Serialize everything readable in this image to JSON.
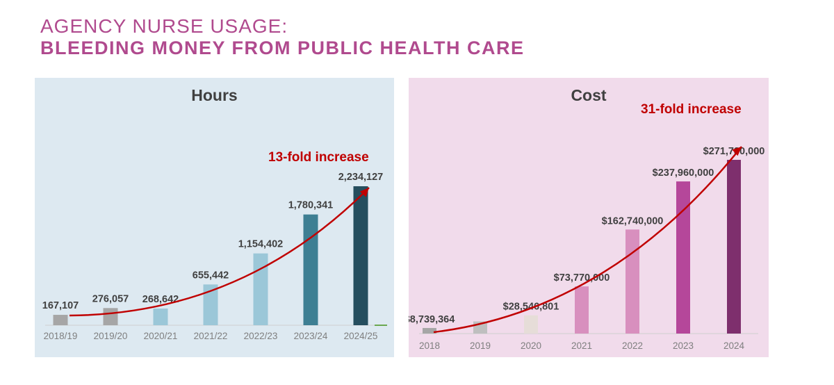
{
  "header": {
    "line1": "AGENCY NURSE USAGE:",
    "line2": "BLEEDING MONEY FROM PUBLIC HEALTH CARE"
  },
  "chart_data": [
    {
      "type": "bar",
      "title": "Hours",
      "annotation": "13-fold increase",
      "categories": [
        "2018/19",
        "2019/20",
        "2020/21",
        "2021/22",
        "2022/23",
        "2023/24",
        "2024/25"
      ],
      "values": [
        167107,
        276057,
        268642,
        655442,
        1154402,
        1780341,
        2234127
      ],
      "labels": [
        "167,107",
        "276,057",
        "268,642",
        "655,442",
        "1,154,402",
        "1,780,341",
        "2,234,127"
      ],
      "colors": [
        "#a6a6a6",
        "#a6a6a6",
        "#9bc7d8",
        "#9bc7d8",
        "#9bc7d8",
        "#3e7f93",
        "#254e5e"
      ],
      "ylim": [
        0,
        2234127
      ],
      "trend_arrow_color": "#c00000"
    },
    {
      "type": "bar",
      "title": "Cost",
      "annotation": "31-fold increase",
      "categories": [
        "2018",
        "2019",
        "2020",
        "2021",
        "2022",
        "2023",
        "2024"
      ],
      "values": [
        8739364,
        19000000,
        28546801,
        73770000,
        162740000,
        237960000,
        271730000
      ],
      "labels": [
        "$8,739,364",
        "",
        "$28,546,801",
        "$73,770,000",
        "$162,740,000",
        "$237,960,000",
        "$271,730,000"
      ],
      "colors": [
        "#a6a6a6",
        "#bfbfbf",
        "#e6ddd8",
        "#d88fbe",
        "#d88fbe",
        "#b5479a",
        "#7e2f6d"
      ],
      "ylim": [
        0,
        271730000
      ],
      "trend_arrow_color": "#c00000"
    }
  ]
}
